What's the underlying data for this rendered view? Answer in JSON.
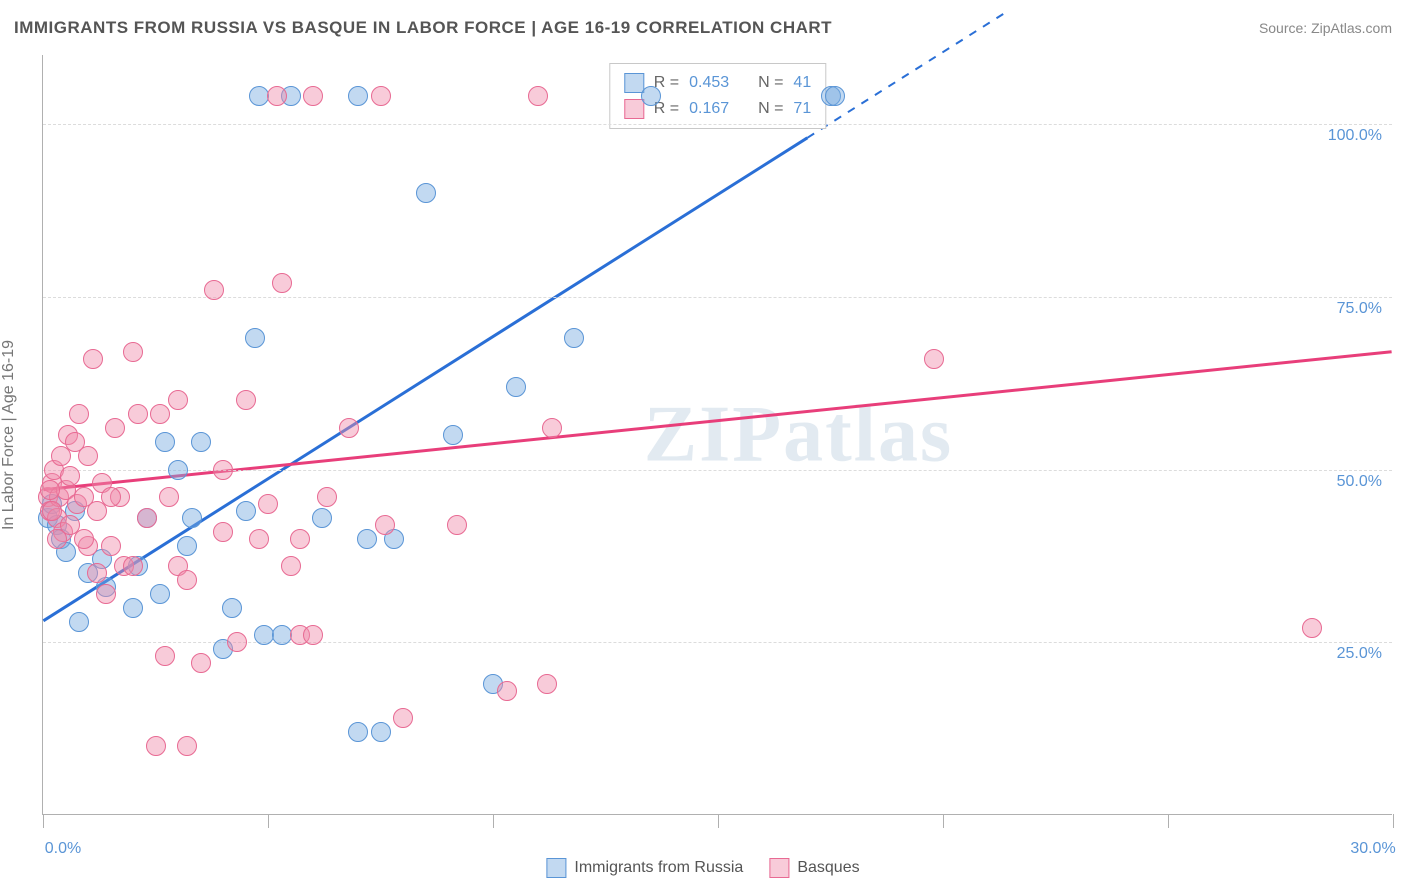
{
  "header": {
    "title": "IMMIGRANTS FROM RUSSIA VS BASQUE IN LABOR FORCE | AGE 16-19 CORRELATION CHART",
    "source": "Source: ZipAtlas.com"
  },
  "watermark": "ZIPatlas",
  "chart": {
    "type": "scatter",
    "y_axis_label": "In Labor Force | Age 16-19",
    "xlim": [
      0,
      30
    ],
    "ylim": [
      0,
      110
    ],
    "x_ticks": [
      0,
      5,
      10,
      15,
      20,
      25,
      30
    ],
    "x_tick_labels": {
      "0": "0.0%",
      "30": "30.0%"
    },
    "y_grid": [
      25,
      50,
      75,
      100
    ],
    "y_tick_labels": {
      "25": "25.0%",
      "50": "50.0%",
      "75": "75.0%",
      "100": "100.0%"
    },
    "background_color": "#ffffff",
    "grid_color": "#dcdcdc",
    "axis_color": "#b0b0b0",
    "label_color": "#5a95d6",
    "point_radius": 10,
    "series": [
      {
        "id": "russia",
        "name": "Immigrants from Russia",
        "fill": "rgba(120,170,225,0.45)",
        "stroke": "#5a95d6",
        "line_color": "#2a6fd6",
        "line_width": 3,
        "R_label": "R = ",
        "R_value": "0.453",
        "N_label": "N = ",
        "N_value": "41",
        "regression": {
          "x1": 0,
          "y1": 28,
          "x2": 17,
          "y2": 98,
          "dash_extend_to_x": 21.5
        },
        "points": [
          [
            0.1,
            43
          ],
          [
            0.2,
            45
          ],
          [
            0.3,
            42
          ],
          [
            0.4,
            40
          ],
          [
            0.5,
            38
          ],
          [
            0.7,
            44
          ],
          [
            0.8,
            28
          ],
          [
            1.0,
            35
          ],
          [
            1.3,
            37
          ],
          [
            1.4,
            33
          ],
          [
            2.0,
            30
          ],
          [
            2.1,
            36
          ],
          [
            2.3,
            43
          ],
          [
            2.6,
            32
          ],
          [
            2.7,
            54
          ],
          [
            3.0,
            50
          ],
          [
            3.2,
            39
          ],
          [
            3.3,
            43
          ],
          [
            3.5,
            54
          ],
          [
            4.0,
            24
          ],
          [
            4.2,
            30
          ],
          [
            4.5,
            44
          ],
          [
            4.7,
            69
          ],
          [
            4.9,
            26
          ],
          [
            5.3,
            26
          ],
          [
            5.5,
            104
          ],
          [
            4.8,
            104
          ],
          [
            7.0,
            104
          ],
          [
            6.2,
            43
          ],
          [
            7.0,
            12
          ],
          [
            7.5,
            12
          ],
          [
            8.5,
            90
          ],
          [
            9.1,
            55
          ],
          [
            10.0,
            19
          ],
          [
            10.5,
            62
          ],
          [
            11.8,
            69
          ],
          [
            13.5,
            104
          ],
          [
            7.2,
            40
          ],
          [
            7.8,
            40
          ],
          [
            17.5,
            104
          ],
          [
            17.6,
            104
          ]
        ]
      },
      {
        "id": "basque",
        "name": "Basques",
        "fill": "rgba(240,140,170,0.45)",
        "stroke": "#e86a93",
        "line_color": "#e83e7a",
        "line_width": 3,
        "R_label": "R = ",
        "R_value": "0.167",
        "N_label": "N = ",
        "N_value": "71",
        "regression": {
          "x1": 0,
          "y1": 47,
          "x2": 30,
          "y2": 67
        },
        "points": [
          [
            0.1,
            46
          ],
          [
            0.15,
            44
          ],
          [
            0.2,
            48
          ],
          [
            0.25,
            50
          ],
          [
            0.3,
            43
          ],
          [
            0.35,
            46
          ],
          [
            0.4,
            52
          ],
          [
            0.45,
            41
          ],
          [
            0.5,
            47
          ],
          [
            0.55,
            55
          ],
          [
            0.6,
            49
          ],
          [
            0.7,
            54
          ],
          [
            0.75,
            45
          ],
          [
            0.8,
            58
          ],
          [
            0.9,
            46
          ],
          [
            1.0,
            52
          ],
          [
            1.1,
            66
          ],
          [
            1.2,
            35
          ],
          [
            1.3,
            48
          ],
          [
            1.5,
            39
          ],
          [
            1.6,
            56
          ],
          [
            1.7,
            46
          ],
          [
            1.8,
            36
          ],
          [
            2.0,
            67
          ],
          [
            2.1,
            58
          ],
          [
            2.3,
            43
          ],
          [
            2.5,
            10
          ],
          [
            2.7,
            23
          ],
          [
            2.8,
            46
          ],
          [
            3.0,
            60
          ],
          [
            3.2,
            10
          ],
          [
            3.5,
            22
          ],
          [
            3.8,
            76
          ],
          [
            4.0,
            50
          ],
          [
            4.3,
            25
          ],
          [
            4.5,
            60
          ],
          [
            5.0,
            45
          ],
          [
            5.2,
            104
          ],
          [
            5.3,
            77
          ],
          [
            5.7,
            40
          ],
          [
            6.0,
            104
          ],
          [
            6.3,
            46
          ],
          [
            6.8,
            56
          ],
          [
            7.5,
            104
          ],
          [
            7.6,
            42
          ],
          [
            8.0,
            14
          ],
          [
            9.2,
            42
          ],
          [
            10.3,
            18
          ],
          [
            11.0,
            104
          ],
          [
            11.2,
            19
          ],
          [
            11.3,
            56
          ],
          [
            5.7,
            26
          ],
          [
            6.0,
            26
          ],
          [
            3.0,
            36
          ],
          [
            3.2,
            34
          ],
          [
            1.4,
            32
          ],
          [
            2.0,
            36
          ],
          [
            1.0,
            39
          ],
          [
            0.9,
            40
          ],
          [
            0.6,
            42
          ],
          [
            0.3,
            40
          ],
          [
            4.8,
            40
          ],
          [
            5.5,
            36
          ],
          [
            19.8,
            66
          ],
          [
            28.2,
            27
          ],
          [
            1.2,
            44
          ],
          [
            1.5,
            46
          ],
          [
            2.6,
            58
          ],
          [
            4.0,
            41
          ],
          [
            0.2,
            44
          ],
          [
            0.15,
            47
          ]
        ]
      }
    ],
    "legend": {
      "items": [
        {
          "series": "russia",
          "label": "Immigrants from Russia"
        },
        {
          "series": "basque",
          "label": "Basques"
        }
      ]
    }
  }
}
